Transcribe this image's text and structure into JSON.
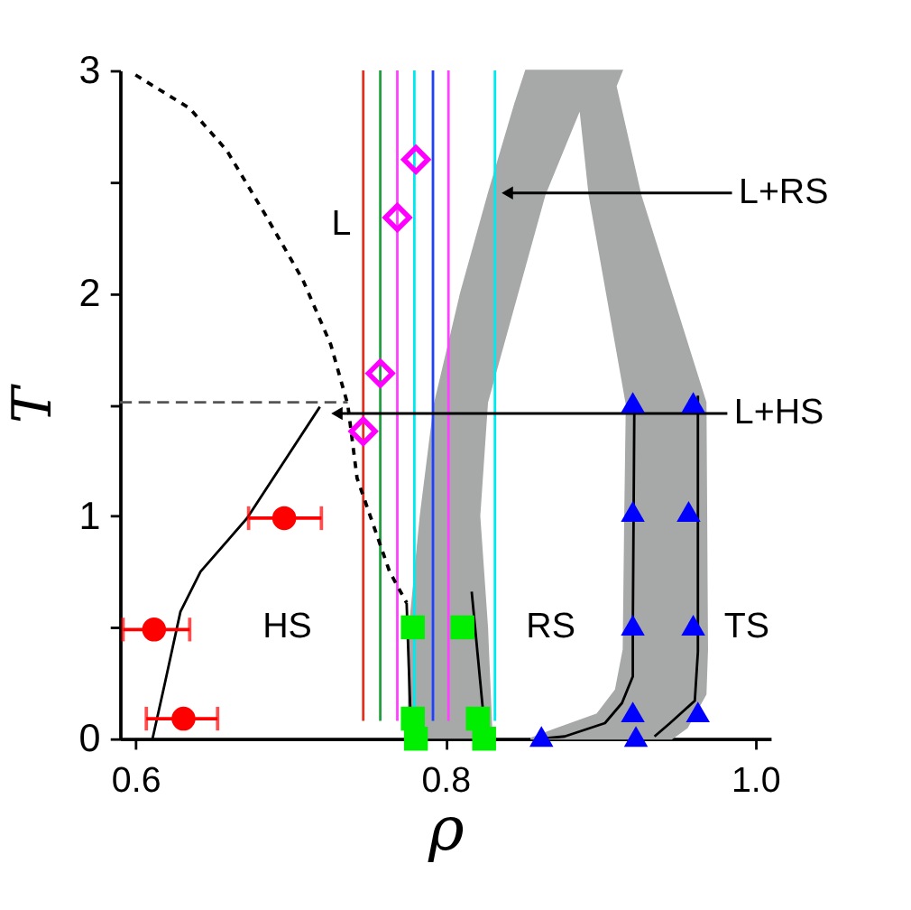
{
  "chart_data": {
    "type": "line",
    "xlabel": "ρ",
    "ylabel": "T",
    "xlim": [
      0.59,
      1.01
    ],
    "ylim": [
      0,
      3
    ],
    "xticks": [
      0.6,
      0.8,
      {
        "value": 1.0,
        "label": "1.0"
      }
    ],
    "yticks": [
      0,
      {
        "value": 0.5,
        "label": null
      },
      1,
      {
        "value": 1.5,
        "label": null
      },
      2,
      {
        "value": 2.5,
        "label": null
      },
      3
    ],
    "grid": false,
    "series": [
      {
        "type": "area",
        "color": "#a7a9a8",
        "x": [
          0.776,
          0.777,
          0.784,
          0.793,
          0.81,
          0.828,
          0.845,
          0.852,
          0.914,
          0.91,
          0.926,
          0.968,
          0.969,
          0.968,
          0.956,
          0.946,
          0.855,
          0.87,
          0.898,
          0.91,
          0.915,
          0.916,
          0.917,
          0.893,
          0.887,
          0.864,
          0.827,
          0.822,
          0.827,
          0.83
        ],
        "values": [
          0,
          0.5,
          1.0,
          1.5,
          2.0,
          2.45,
          2.85,
          3.0,
          3.0,
          2.93,
          2.44,
          1.51,
          0.4,
          0.2,
          0.05,
          0,
          0,
          0.04,
          0.11,
          0.22,
          0.4,
          1.0,
          1.5,
          2.44,
          2.83,
          2.44,
          1.51,
          1.0,
          0.5,
          0
        ]
      },
      {
        "color": "#e03020",
        "x": [
          0.747,
          0.747
        ],
        "values": [
          0.08,
          3.0
        ]
      },
      {
        "color": "#20a040",
        "x": [
          0.758,
          0.758
        ],
        "values": [
          0.08,
          3.0
        ]
      },
      {
        "color": "#ff40ff",
        "x": [
          0.769,
          0.769
        ],
        "values": [
          0.08,
          3.0
        ]
      },
      {
        "color": "#00e8f0",
        "x": [
          0.78,
          0.78
        ],
        "values": [
          0.08,
          3.0
        ]
      },
      {
        "color": "#2040ff",
        "x": [
          0.792,
          0.792
        ],
        "values": [
          0.08,
          3.0
        ]
      },
      {
        "color": "#ff40ff",
        "x": [
          0.802,
          0.802
        ],
        "values": [
          0.08,
          3.0
        ]
      },
      {
        "color": "#00e8f0",
        "x": [
          0.832,
          0.832
        ],
        "values": [
          0.08,
          3.0
        ]
      },
      {
        "color": "#000000",
        "line_style": "dotted",
        "x": [
          0.6,
          0.635,
          0.659,
          0.684,
          0.708,
          0.726,
          0.737,
          0.743,
          0.764,
          0.775
        ],
        "values": [
          2.98,
          2.83,
          2.64,
          2.35,
          2.06,
          1.77,
          1.5,
          1.17,
          0.75,
          0.61
        ]
      },
      {
        "color": "#555555",
        "line_style": "dashed",
        "x": [
          0.59,
          0.737
        ],
        "values": [
          1.51,
          1.51
        ]
      },
      {
        "color": "#000000",
        "x": [
          0.611,
          0.619,
          0.629,
          0.642,
          0.672,
          0.719
        ],
        "values": [
          0,
          0.25,
          0.57,
          0.75,
          0.99,
          1.49
        ]
      },
      {
        "color": "#000000",
        "x": [
          0.775,
          0.778
        ],
        "values": [
          0.61,
          0
        ]
      },
      {
        "color": "#000000",
        "x": [
          0.817,
          0.826
        ],
        "values": [
          0.66,
          0
        ]
      },
      {
        "color": "#000000",
        "x": [
          0.862,
          0.877,
          0.903,
          0.914,
          0.921,
          0.921,
          0.922
        ],
        "values": [
          0,
          0.01,
          0.07,
          0.16,
          0.28,
          0.5,
          1.51
        ]
      },
      {
        "color": "#000000",
        "x": [
          0.935,
          0.945,
          0.961,
          0.963,
          0.963
        ],
        "values": [
          0.01,
          0.07,
          0.17,
          0.39,
          1.54
        ]
      },
      {
        "color": "#000000",
        "marker": "triangle",
        "x": [
          0.84,
          0.985
        ],
        "values": [
          2.45,
          2.45
        ]
      },
      {
        "color": "#000000",
        "marker": "triangle",
        "x": [
          0.73,
          0.982
        ],
        "values": [
          1.46,
          1.46
        ]
      },
      {
        "type": "scatter",
        "color": "#ff00ff",
        "marker": "diamond",
        "x": [
          0.781,
          0.769,
          0.758,
          0.747
        ],
        "values": [
          2.6,
          2.34,
          1.64,
          1.38
        ]
      },
      {
        "type": "scatter",
        "color": "#ff0000",
        "marker": "circle",
        "x": [
          0.696,
          0.612,
          0.631
        ],
        "values": [
          0.99,
          0.49,
          0.09
        ],
        "xerrors": [
          [
            0.673,
            0.72
          ],
          [
            0.592,
            0.635
          ],
          [
            0.607,
            0.653
          ]
        ]
      },
      {
        "type": "scatter",
        "color": "#00ee00",
        "marker": "square",
        "x": [
          0.779,
          0.811,
          0.779,
          0.781,
          0.821,
          0.825
        ],
        "values": [
          0.5,
          0.5,
          0.09,
          0.0,
          0.09,
          0.0
        ]
      },
      {
        "type": "scatter",
        "color": "#0000ff",
        "marker": "triangle",
        "x": [
          0.921,
          0.96,
          0.921,
          0.957,
          0.921,
          0.96,
          0.921,
          0.963,
          0.862,
          0.923
        ],
        "values": [
          1.51,
          1.51,
          1.02,
          1.02,
          0.51,
          0.51,
          0.12,
          0.12,
          0.01,
          0.01
        ]
      }
    ],
    "annotations": [
      "L",
      "HS",
      "RS",
      "TS",
      "L+RS",
      "L+HS"
    ]
  }
}
